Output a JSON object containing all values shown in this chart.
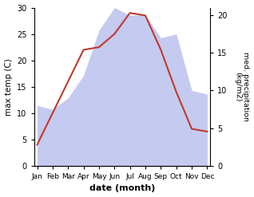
{
  "months": [
    "Jan",
    "Feb",
    "Mar",
    "Apr",
    "May",
    "Jun",
    "Jul",
    "Aug",
    "Sep",
    "Oct",
    "Nov",
    "Dec"
  ],
  "temperature": [
    4,
    10,
    16,
    22,
    22.5,
    25,
    29,
    28.5,
    22,
    14,
    7,
    6.5
  ],
  "precipitation": [
    8,
    7.5,
    9,
    12,
    18,
    21,
    20,
    20,
    17,
    17.5,
    10,
    9.5
  ],
  "temp_color": "#c0392b",
  "precip_color_fill": "#c5caf0",
  "temp_ylim": [
    0,
    30
  ],
  "precip_ylim": [
    0,
    21
  ],
  "xlabel": "date (month)",
  "ylabel_left": "max temp (C)",
  "ylabel_right": "med. precipitation\n(kg/m2)",
  "right_ticks": [
    0,
    5,
    10,
    15,
    20
  ],
  "left_ticks": [
    0,
    5,
    10,
    15,
    20,
    25,
    30
  ],
  "bg_color": "#ffffff",
  "line_width": 1.5
}
